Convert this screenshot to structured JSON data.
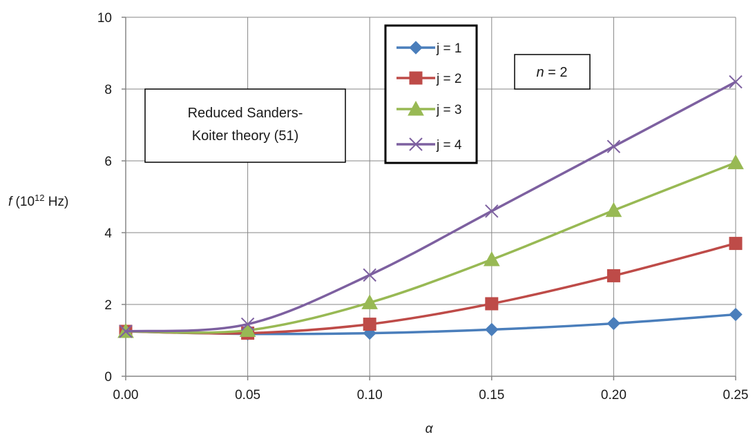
{
  "chart_data": {
    "type": "line",
    "x": [
      0.0,
      0.05,
      0.1,
      0.15,
      0.2,
      0.25
    ],
    "x_tick_labels": [
      "0.00",
      "0.05",
      "0.10",
      "0.15",
      "0.20",
      "0.25"
    ],
    "y_ticks": [
      0,
      2,
      4,
      6,
      8,
      10
    ],
    "xlim": [
      0,
      0.25
    ],
    "ylim": [
      0,
      10
    ],
    "grid": true,
    "xlabel": "α",
    "ylabel": {
      "symbol": "f",
      "prefix": " (10",
      "exponent": "12",
      "unit": " Hz)"
    },
    "series": [
      {
        "name": "j = 1",
        "color": "#4a7ebb",
        "marker": "diamond",
        "values": [
          1.25,
          1.18,
          1.2,
          1.3,
          1.47,
          1.72
        ]
      },
      {
        "name": "j = 2",
        "color": "#be4b48",
        "marker": "square",
        "values": [
          1.25,
          1.2,
          1.45,
          2.02,
          2.8,
          3.7
        ]
      },
      {
        "name": "j = 3",
        "color": "#98b954",
        "marker": "triangle",
        "values": [
          1.25,
          1.28,
          2.05,
          3.25,
          4.62,
          5.95
        ]
      },
      {
        "name": "j = 4",
        "color": "#7d60a0",
        "marker": "x",
        "values": [
          1.25,
          1.45,
          2.82,
          4.6,
          6.4,
          8.2
        ]
      }
    ],
    "annotations": {
      "theory_line1": "Reduced Sanders-",
      "theory_line2": "Koiter theory (51)",
      "n_symbol": "n",
      "n_value": " = 2"
    },
    "legend_position": "top-center"
  }
}
